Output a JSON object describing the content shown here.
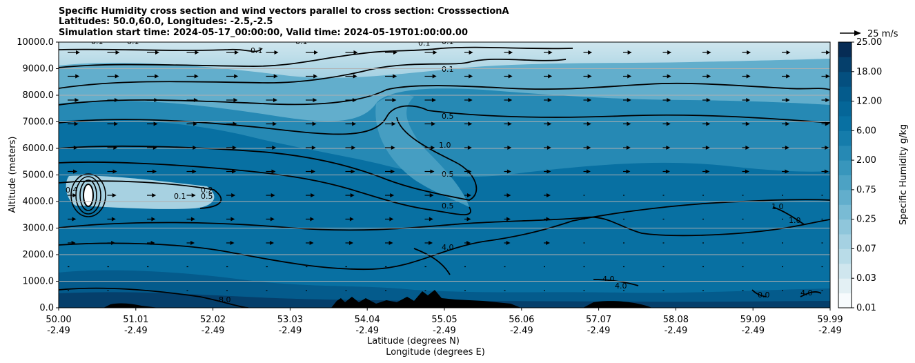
{
  "title_lines": [
    "Specific Humidity cross section and wind vectors parallel to cross section: CrosssectionA",
    "Latitudes: 50.0,60.0, Longitudes: -2.5,-2.5",
    "Simulation start time: 2024-05-17_00:00:00, Valid time: 2024-05-19T01:00:00.00"
  ],
  "chart_data": {
    "type": "heatmap",
    "ylabel": "Altitude (meters)",
    "xlabel_lines": [
      "Latitude (degrees N)",
      "Longitude (degrees E)"
    ],
    "ylim": [
      0,
      10000
    ],
    "xlim": [
      50.0,
      59.99
    ],
    "y_ticks": [
      "0.0",
      "1000.0",
      "2000.0",
      "3000.0",
      "4000.0",
      "5000.0",
      "6000.0",
      "7000.0",
      "8000.0",
      "9000.0",
      "10000.0"
    ],
    "x_ticks": [
      {
        "lat": "50.00",
        "lon": "-2.49"
      },
      {
        "lat": "51.01",
        "lon": "-2.49"
      },
      {
        "lat": "52.02",
        "lon": "-2.49"
      },
      {
        "lat": "53.03",
        "lon": "-2.49"
      },
      {
        "lat": "54.04",
        "lon": "-2.49"
      },
      {
        "lat": "55.05",
        "lon": "-2.49"
      },
      {
        "lat": "56.06",
        "lon": "-2.49"
      },
      {
        "lat": "57.07",
        "lon": "-2.49"
      },
      {
        "lat": "58.08",
        "lon": "-2.49"
      },
      {
        "lat": "59.09",
        "lon": "-2.49"
      },
      {
        "lat": "59.99",
        "lon": "-2.49"
      }
    ],
    "grid": "horizontal",
    "colorbar": {
      "label": "Specific Humidity g/kg",
      "tick_labels": [
        "0.01",
        "0.03",
        "0.07",
        "0.25",
        "0.75",
        "2.00",
        "6.00",
        "12.00",
        "18.00",
        "25.00"
      ],
      "levels": 18,
      "colors": [
        "#f7fbfd",
        "#e3f0f4",
        "#cfe6ee",
        "#b9dce8",
        "#a5d1e2",
        "#8fc6db",
        "#79bbd4",
        "#62aecc",
        "#4ca2c4",
        "#3896bc",
        "#2689b4",
        "#157cab",
        "#0870a2",
        "#056698",
        "#045b8c",
        "#044f7f",
        "#053f6b",
        "#062c55"
      ]
    },
    "vector_key_label": "25 m/s",
    "contour_labels": [
      "0.1",
      "0.1",
      "0.1",
      "0.1",
      "0.1",
      "0.1",
      "0.1",
      "0.5",
      "1.0",
      "0.5",
      "0.5",
      "4.0",
      "4.0",
      "4.0",
      "1.0",
      "1.0",
      "4.0",
      "8.0",
      "0.2",
      "0.5",
      "0.1",
      "0.4",
      "0.0"
    ]
  }
}
